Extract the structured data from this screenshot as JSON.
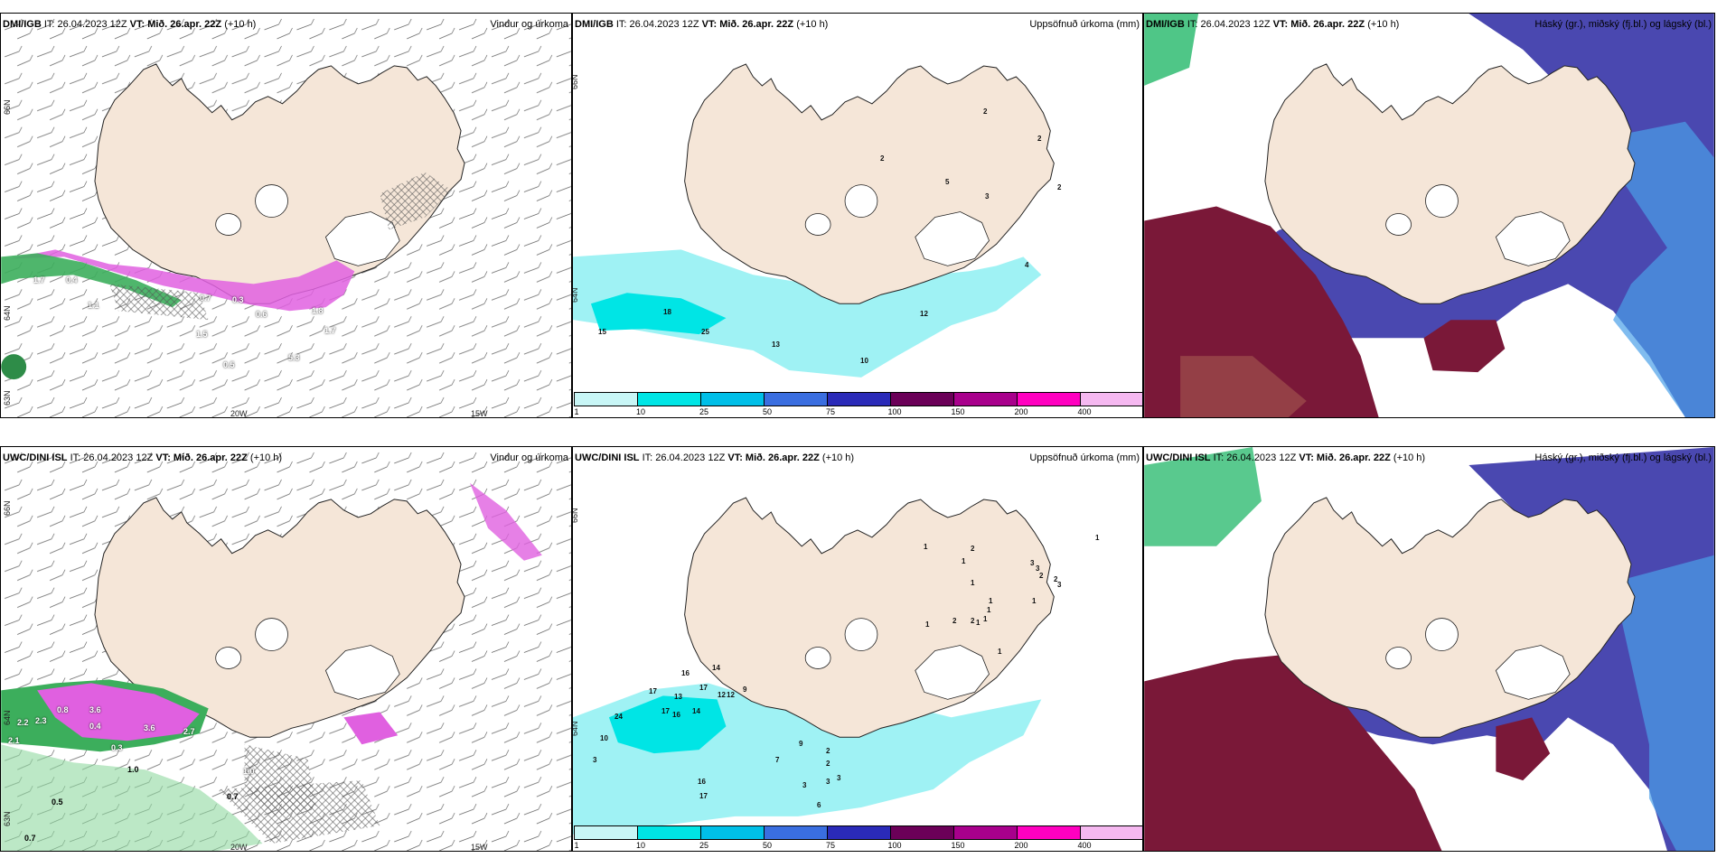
{
  "panels": [
    {
      "model": "DMI/IGB",
      "it": "IT: 26.04.2023 12Z",
      "vt_label": "VT:",
      "vt_value": "Mið. 26.apr. 22Z",
      "lead": "(+10 h)",
      "title": "Vindur og úrkoma"
    },
    {
      "model": "DMI/IGB",
      "it": "IT: 26.04.2023 12Z",
      "vt_label": "VT:",
      "vt_value": "Mið. 26.apr. 22Z",
      "lead": "(+10 h)",
      "title": "Uppsöfnuð úrkoma (mm)"
    },
    {
      "model": "DMI/IGB",
      "it": "IT: 26.04.2023 12Z",
      "vt_label": "VT:",
      "vt_value": "Mið. 26.apr. 22Z",
      "lead": "(+10 h)",
      "title": "Háský (gr.), miðský (fj.bl.) og lágský (bl.)"
    },
    {
      "model": "UWC/DINI ISL",
      "it": "IT: 26.04.2023 12Z",
      "vt_label": "VT:",
      "vt_value": "Mið. 26.apr. 22Z",
      "lead": "(+10 h)",
      "title": "Vindur og úrkoma"
    },
    {
      "model": "UWC/DINI ISL",
      "it": "IT: 26.04.2023 12Z",
      "vt_label": "VT:",
      "vt_value": "Mið. 26.apr. 22Z",
      "lead": "(+10 h)",
      "title": "Uppsöfnuð úrkoma (mm)"
    },
    {
      "model": "UWC/DINI ISL",
      "it": "IT: 26.04.2023 12Z",
      "vt_label": "VT:",
      "vt_value": "Mið. 26.apr. 22Z",
      "lead": "(+10 h)",
      "title": "Háský (gr.), miðský (fj.bl.) og lágský (bl.)"
    }
  ],
  "axis_labels": {
    "lon_20w": "20W",
    "lon_15w": "15W",
    "lat_66n": "66N",
    "lat_64n": "64N",
    "lat_63n_top": "63N",
    "lat_63n_bottom": "63N"
  },
  "colorbar": {
    "ticks": [
      "1",
      "10",
      "25",
      "50",
      "75",
      "100",
      "150",
      "200",
      "400"
    ],
    "colors": [
      "#c8f6f6",
      "#00e5e5",
      "#00bfe8",
      "#3a6ee0",
      "#2a2ab8",
      "#6b0058",
      "#a8008c",
      "#ff00c0",
      "#f5b8f0"
    ]
  },
  "colors": {
    "land": "#f5e6d8",
    "sea": "#ffffff",
    "precip_cyan": "#9ff2f4",
    "wind_magenta": "#e060e0",
    "wind_green": "#3cae5c",
    "cloud_high": "#7a1838",
    "cloud_mid": "#4a48b0",
    "cloud_low": "#4aa0e8"
  },
  "accum_labels_top": [
    "2",
    "2",
    "2",
    "5",
    "3",
    "2",
    "4",
    "18",
    "15",
    "25",
    "12",
    "13",
    "10"
  ],
  "accum_labels_bottom": [
    "1",
    "1",
    "1",
    "2",
    "3",
    "3",
    "2",
    "2",
    "3",
    "1",
    "1",
    "1",
    "1",
    "1",
    "1",
    "1",
    "1",
    "2",
    "2",
    "16",
    "14",
    "17",
    "13",
    "17",
    "12",
    "12",
    "9",
    "10",
    "24",
    "17",
    "16",
    "14",
    "3",
    "2",
    "2",
    "3",
    "9",
    "7",
    "6",
    "3",
    "3",
    "16",
    "3",
    "17"
  ],
  "wind_labels_top": [
    "1.7",
    "0.4",
    "1.1",
    "0.7",
    "0.3",
    "0.6",
    "1.8",
    "1.7",
    "1.5",
    "5.3",
    "0.5"
  ],
  "wind_labels_bottom": [
    "0.8",
    "3.6",
    "2.2",
    "2.3",
    "0.4",
    "2.1",
    "0.3",
    "3.6",
    "1.0",
    "0.5",
    "0.7",
    "0.7",
    "1.0",
    "2.7"
  ]
}
